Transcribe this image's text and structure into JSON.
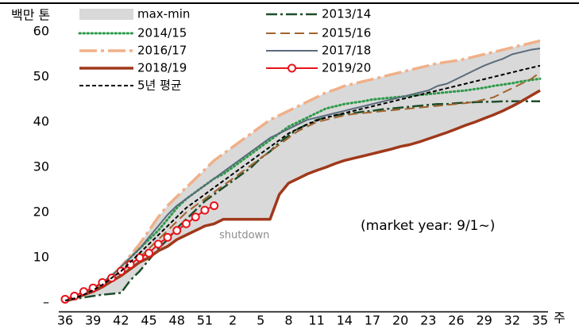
{
  "chart_data": {
    "type": "line",
    "ylabel": "백만 톤",
    "xlabel": "주",
    "annotations": [
      "shutdown",
      "(market year: 9/1~)"
    ],
    "categories": [
      "36",
      null,
      null,
      "39",
      null,
      null,
      "42",
      null,
      null,
      "45",
      null,
      null,
      "48",
      null,
      null,
      "51",
      null,
      null,
      "2",
      null,
      null,
      "5",
      null,
      null,
      "8",
      null,
      null,
      "11",
      null,
      null,
      "14",
      null,
      null,
      "17",
      null,
      null,
      "20",
      null,
      null,
      "23",
      null,
      null,
      "26",
      null,
      null,
      "29",
      null,
      null,
      "32",
      null,
      null,
      "35"
    ],
    "ylim": [
      -2,
      66
    ],
    "yticks": [
      {
        "value": 0,
        "label": "–"
      },
      10,
      20,
      30,
      40,
      50,
      60
    ],
    "grid": false,
    "legend": "top",
    "series": [
      {
        "name": "max-min",
        "color": "#d9d9d9",
        "linestyle": "band",
        "values": [
          0.5,
          1,
          2,
          3,
          4.5,
          6,
          8,
          10.5,
          13,
          16,
          19,
          21.5,
          23.5,
          25.5,
          27.5,
          29.5,
          31.5,
          33,
          34.5,
          36,
          37.5,
          39,
          40.5,
          41.5,
          42.5,
          43.5,
          44.5,
          45.5,
          46.5,
          47.2,
          48,
          48.5,
          49,
          49.5,
          50,
          50.5,
          51,
          51.5,
          52,
          52.5,
          53,
          53.3,
          53.6,
          54,
          54.5,
          55,
          55.5,
          56,
          56.5,
          57,
          57.5,
          58
        ],
        "low": [
          0.3,
          0.8,
          1.2,
          1.5,
          1.8,
          2,
          2.2,
          5,
          7,
          9.5,
          11.5,
          12.5,
          14,
          15,
          16,
          17,
          17.5,
          18.5,
          18.5,
          18.5,
          18.5,
          18.5,
          18.5,
          24,
          26.5,
          27.5,
          28.5,
          29.3,
          30,
          30.8,
          31.5,
          32,
          32.5,
          33,
          33.5,
          34,
          34.6,
          35,
          35.6,
          36.3,
          37,
          37.7,
          38.5,
          39.3,
          40,
          40.8,
          41.6,
          42.5,
          43.5,
          44.6,
          45.8,
          47
        ]
      },
      {
        "name": "2013/14",
        "color": "#1e4d2b",
        "linestyle": "dashdot",
        "values": [
          0.3,
          0.8,
          1.2,
          1.5,
          1.8,
          2,
          2.2,
          5,
          7,
          9.5,
          12,
          14,
          16.5,
          18.5,
          20.5,
          22.5,
          24,
          25.5,
          27,
          28.5,
          30,
          32,
          33.5,
          35.5,
          37,
          38.5,
          39.5,
          40.5,
          41,
          41.5,
          41.8,
          42,
          42.3,
          42.5,
          42.8,
          43,
          43.2,
          43.4,
          43.6,
          43.8,
          44,
          44,
          44.2,
          44.3,
          44.4,
          44.5,
          44.5,
          44.6,
          44.6,
          44.6,
          44.6,
          44.6
        ]
      },
      {
        "name": "2014/15",
        "color": "#2e9b4a",
        "linestyle": "dotted",
        "values": [
          0.5,
          1,
          2,
          3,
          4.5,
          6,
          8,
          10,
          12,
          14,
          16,
          18.5,
          21,
          23,
          24.5,
          26,
          27.5,
          28.5,
          30,
          31.5,
          33,
          34.5,
          36,
          37.5,
          39,
          40,
          41,
          42,
          43,
          43.5,
          44,
          44.3,
          44.6,
          45,
          45.2,
          45.4,
          45.6,
          45.8,
          46,
          46.2,
          46.4,
          46.6,
          46.8,
          47,
          47.3,
          47.6,
          48,
          48.3,
          48.6,
          49,
          49.3,
          49.6
        ]
      },
      {
        "name": "2015/16",
        "color": "#a0642d",
        "linestyle": "dashed",
        "values": [
          0.5,
          1,
          1.8,
          2.8,
          4,
          5.5,
          7,
          8.5,
          10,
          12,
          14,
          16,
          18,
          20,
          21.5,
          23,
          24.5,
          26,
          27.5,
          29,
          30.5,
          32,
          33.5,
          35,
          36.5,
          38,
          39,
          40,
          40.5,
          41,
          41.5,
          41.8,
          42,
          42.2,
          42.4,
          42.6,
          42.8,
          43,
          43.2,
          43.4,
          43.6,
          43.8,
          44,
          44.2,
          44.5,
          45,
          45.5,
          46.5,
          47.5,
          48.5,
          49.5,
          51
        ]
      },
      {
        "name": "2016/17",
        "color": "#f0b088",
        "linestyle": "longdashdot",
        "values": [
          0.5,
          1,
          2,
          3,
          4.5,
          6,
          8,
          10.5,
          13,
          16,
          19,
          21.5,
          23.5,
          25.5,
          27.5,
          29.5,
          31.5,
          33,
          34.5,
          36,
          37.5,
          39,
          40.5,
          41.5,
          42.5,
          43.5,
          44.5,
          45.5,
          46.5,
          47.2,
          48,
          48.5,
          49,
          49.5,
          50,
          50.5,
          51,
          51.5,
          52,
          52.5,
          53,
          53.3,
          53.6,
          54,
          54.5,
          55,
          55.5,
          56,
          56.5,
          57,
          57.5,
          58
        ]
      },
      {
        "name": "2017/18",
        "color": "#5a6b7b",
        "linestyle": "solid",
        "values": [
          0.5,
          1,
          2,
          3,
          4.5,
          6,
          8,
          10,
          12,
          14.5,
          17,
          19.5,
          21.5,
          23,
          24.5,
          26,
          27.5,
          29,
          30.5,
          32,
          33.5,
          35,
          36.5,
          37.5,
          38.5,
          39.5,
          40.5,
          41,
          41.5,
          42,
          42.5,
          43,
          43.5,
          44,
          44.5,
          45,
          45.5,
          46,
          46.5,
          47,
          48,
          48.5,
          49.5,
          50.5,
          51.5,
          52.5,
          53.3,
          54,
          55,
          55.5,
          56,
          56.3
        ]
      },
      {
        "name": "2018/19",
        "color": "#a0381a",
        "linestyle": "thick",
        "values": [
          0.5,
          1,
          1.8,
          2.5,
          3.5,
          4.8,
          6,
          7.5,
          9,
          10,
          11.5,
          12.5,
          14,
          15,
          16,
          17,
          17.5,
          18.5,
          18.5,
          18.5,
          18.5,
          18.5,
          18.5,
          24,
          26.5,
          27.5,
          28.5,
          29.3,
          30,
          30.8,
          31.5,
          32,
          32.5,
          33,
          33.5,
          34,
          34.6,
          35,
          35.6,
          36.3,
          37,
          37.7,
          38.5,
          39.3,
          40,
          40.8,
          41.6,
          42.5,
          43.5,
          44.6,
          45.8,
          47
        ]
      },
      {
        "name": "2019/20",
        "color": "#e8141c",
        "linestyle": "markers",
        "values": [
          0.8,
          1.5,
          2.5,
          3.3,
          4.5,
          5.5,
          7,
          8.5,
          10,
          11,
          13,
          14.5,
          16,
          17.5,
          19,
          20.5,
          21.5,
          null,
          null,
          null,
          null,
          null,
          null,
          null,
          null,
          null,
          null,
          null,
          null,
          null,
          null,
          null,
          null,
          null,
          null,
          null,
          null,
          null,
          null,
          null,
          null,
          null,
          null,
          null,
          null,
          null,
          null,
          null,
          null,
          null,
          null,
          null
        ]
      },
      {
        "name": "5년 평균",
        "color": "#000000",
        "linestyle": "shortdashed",
        "values": [
          0.5,
          1,
          1.8,
          2.8,
          4,
          5.5,
          7,
          9,
          11,
          13,
          15,
          17,
          19,
          21,
          22.5,
          24,
          25.5,
          27,
          28.5,
          30,
          31.5,
          33,
          34.5,
          36,
          37.5,
          38.5,
          39.5,
          40.3,
          41,
          41.5,
          42,
          42.5,
          43,
          43.5,
          44,
          44.5,
          45,
          45.5,
          46,
          46.5,
          47,
          47.5,
          48,
          48.5,
          49,
          49.5,
          50,
          50.5,
          51,
          51.5,
          52,
          52.5
        ]
      }
    ]
  }
}
